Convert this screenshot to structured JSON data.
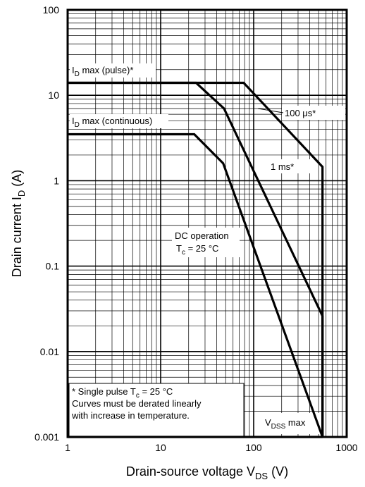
{
  "chart_data": {
    "type": "line",
    "x_scale": "log",
    "y_scale": "log",
    "xlim": [
      1,
      1000
    ],
    "ylim": [
      0.001,
      100
    ],
    "grid": true,
    "x_ticks": [
      "1",
      "10",
      "100",
      "1000"
    ],
    "y_ticks": [
      "0.001",
      "0.01",
      "0.1",
      "1",
      "10",
      "100"
    ],
    "xlabel": {
      "main": "Drain-source voltage  V",
      "sub": "DS",
      "unit": "  (V)"
    },
    "ylabel": {
      "main": "Drain current  I",
      "sub": "D",
      "unit": "  (A)"
    },
    "series": [
      {
        "name": "100 μs*",
        "points": [
          [
            1,
            14
          ],
          [
            78,
            14
          ],
          [
            550,
            1.45
          ],
          [
            550,
            0.001
          ]
        ]
      },
      {
        "name": "1 ms*",
        "points": [
          [
            1,
            14
          ],
          [
            24,
            14
          ],
          [
            48,
            7
          ],
          [
            550,
            0.026
          ],
          [
            550,
            0.001
          ]
        ]
      },
      {
        "name": "DC operation",
        "points": [
          [
            1,
            3.5
          ],
          [
            23,
            3.5
          ],
          [
            47,
            1.6
          ],
          [
            550,
            0.001
          ]
        ]
      }
    ],
    "annotations": {
      "id_pulse": {
        "prefix": "I",
        "sub": "D",
        "rest": " max (pulse)*"
      },
      "id_continuous": {
        "prefix": "I",
        "sub": "D",
        "rest": " max (continuous)"
      },
      "us100": "100 μs*",
      "ms1": "1 ms*",
      "dc_line1": "DC operation",
      "dc_line2": {
        "prefix": "T",
        "sub": "c",
        "rest": " = 25 °C"
      },
      "vdss": {
        "prefix": "V",
        "sub": "DSS",
        "rest": " max"
      },
      "note_line1": {
        "prefix": "* Single pulse T",
        "sub": "c",
        "rest": " = 25 °C"
      },
      "note_line2": "Curves must be derated linearly",
      "note_line3": "with increase in temperature."
    }
  }
}
